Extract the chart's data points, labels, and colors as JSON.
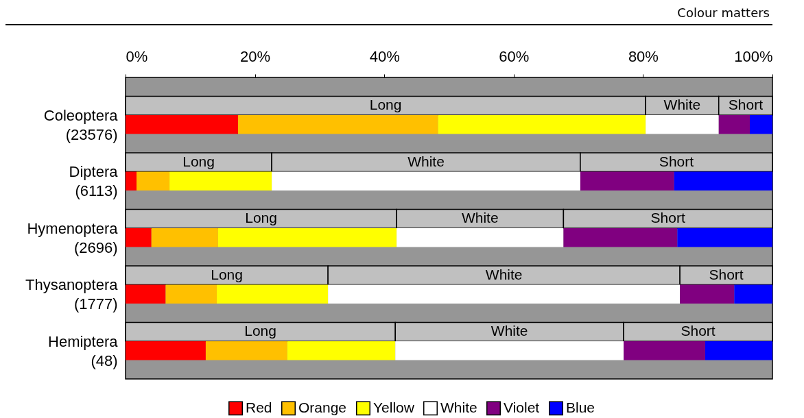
{
  "chart_data": {
    "type": "bar",
    "orientation": "horizontal",
    "stacked": true,
    "title": "Colour matters",
    "categories": [
      null,
      "Coleoptera\n(23576)",
      null,
      "Diptera\n(6113)",
      null,
      "Hymenoptera\n(2696)",
      null,
      "Thysanoptera\n(1777)",
      null,
      "Hemiptera\n(48)"
    ],
    "series": [
      {
        "name": "Long",
        "color": "#c0c0c0",
        "values": [
          80.4,
          null,
          22.6,
          null,
          41.9,
          null,
          31.3,
          null,
          41.7,
          null
        ]
      },
      {
        "name": "White",
        "color": "#c0c0c0",
        "values": [
          11.3,
          null,
          47.7,
          null,
          25.8,
          null,
          54.4,
          null,
          35.3,
          null
        ]
      },
      {
        "name": "Short",
        "color": "#c0c0c0",
        "values": [
          8.3,
          null,
          29.7,
          null,
          32.3,
          null,
          14.3,
          null,
          23.0,
          null
        ]
      },
      {
        "name": "Red",
        "color": "#ff0000",
        "values": [
          null,
          17.4,
          null,
          1.7,
          null,
          4.0,
          null,
          6.2,
          null,
          12.4
        ]
      },
      {
        "name": "Orange",
        "color": "#ffc000",
        "values": [
          null,
          30.9,
          null,
          5.1,
          null,
          10.3,
          null,
          7.9,
          null,
          12.6
        ]
      },
      {
        "name": "Yellow",
        "color": "#ffff00",
        "values": [
          null,
          32.1,
          null,
          15.8,
          null,
          27.6,
          null,
          17.2,
          null,
          16.7
        ]
      },
      {
        "name": "White",
        "color": "#ffffff",
        "values": [
          null,
          11.3,
          null,
          47.7,
          null,
          25.8,
          null,
          54.4,
          null,
          35.3
        ]
      },
      {
        "name": "Violet",
        "color": "#800080",
        "values": [
          null,
          4.8,
          null,
          14.5,
          null,
          17.6,
          null,
          8.4,
          null,
          12.6
        ]
      },
      {
        "name": "Blue",
        "color": "#0000ff",
        "values": [
          null,
          3.5,
          null,
          15.2,
          null,
          14.7,
          null,
          5.9,
          null,
          10.4
        ]
      }
    ],
    "xlim": [
      0,
      100
    ],
    "xticks": [
      {
        "value": 0,
        "label": "0%"
      },
      {
        "value": 20,
        "label": "20%"
      },
      {
        "value": 40,
        "label": "40%"
      },
      {
        "value": 60,
        "label": "60%"
      },
      {
        "value": 80,
        "label": "80%"
      },
      {
        "value": 100,
        "label": "100%"
      }
    ],
    "legend": "bottom"
  }
}
